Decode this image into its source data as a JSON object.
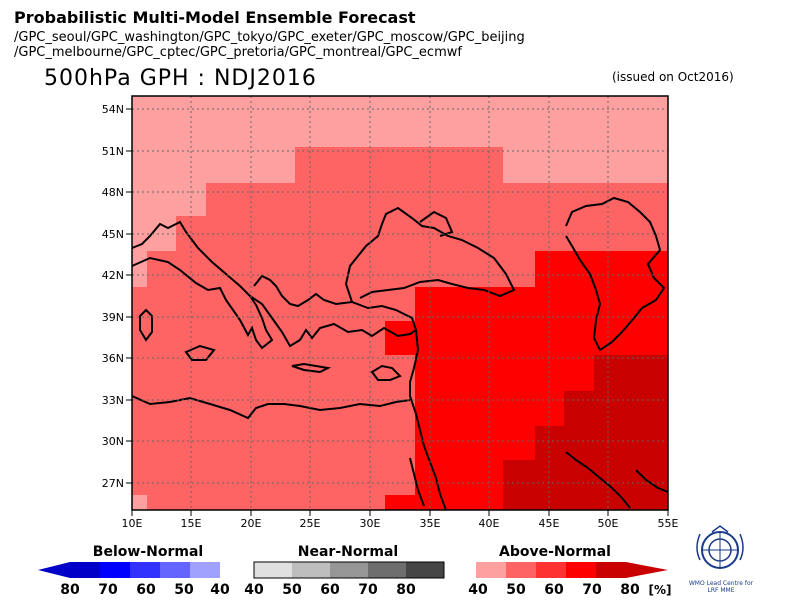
{
  "header": {
    "title": "Probabilistic Multi-Model Ensemble Forecast",
    "models_line1": "/GPC_seoul/GPC_washington/GPC_tokyo/GPC_exeter/GPC_moscow/GPC_beijing",
    "models_line2": "/GPC_melbourne/GPC_cptec/GPC_pretoria/GPC_montreal/GPC_ecmwf",
    "variable_period": "500hPa GPH : NDJ2016",
    "issued": "(issued on Oct2016)"
  },
  "map": {
    "lat_labels": [
      "54N",
      "51N",
      "48N",
      "45N",
      "42N",
      "39N",
      "36N",
      "33N",
      "30N",
      "27N"
    ],
    "lon_labels": [
      "10E",
      "15E",
      "20E",
      "25E",
      "30E",
      "35E",
      "40E",
      "45E",
      "50E",
      "55E"
    ],
    "lat_range": [
      25,
      55
    ],
    "lon_range": [
      10,
      55
    ],
    "grid": "dotted",
    "colors": {
      "above_40": "#ffa0a0",
      "above_50": "#ff6464",
      "above_60": "#ff3232",
      "above_70": "#ff0000",
      "above_80": "#c80000"
    }
  },
  "legend": {
    "below": {
      "title": "Below-Normal",
      "values": [
        "80",
        "70",
        "60",
        "50",
        "40"
      ],
      "colors": [
        "#0000c8",
        "#0000ff",
        "#3232ff",
        "#6464ff",
        "#a0a0ff"
      ]
    },
    "near": {
      "title": "Near-Normal",
      "values": [
        "40",
        "50",
        "60",
        "70",
        "80"
      ],
      "colors": [
        "#e0e0e0",
        "#bebebe",
        "#969696",
        "#6e6e6e",
        "#464646"
      ]
    },
    "above": {
      "title": "Above-Normal",
      "values": [
        "40",
        "50",
        "60",
        "70",
        "80"
      ],
      "colors": [
        "#ffa0a0",
        "#ff6464",
        "#ff3232",
        "#ff0000",
        "#c80000"
      ],
      "unit": "[%]"
    }
  },
  "logo": {
    "text": "WMO Lead Centre for LRF MME"
  }
}
